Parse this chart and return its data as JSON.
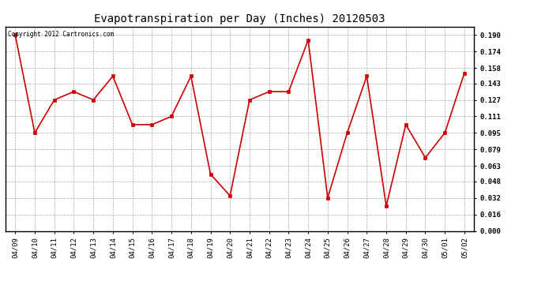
{
  "title": "Evapotranspiration per Day (Inches) 20120503",
  "copyright_text": "Copyright 2012 Cartronics.com",
  "dates": [
    "04/09",
    "04/10",
    "04/11",
    "04/12",
    "04/13",
    "04/14",
    "04/15",
    "04/16",
    "04/17",
    "04/18",
    "04/19",
    "04/20",
    "04/21",
    "04/22",
    "04/23",
    "04/24",
    "04/25",
    "04/26",
    "04/27",
    "04/28",
    "04/29",
    "04/30",
    "05/01",
    "05/02"
  ],
  "values": [
    0.19,
    0.095,
    0.127,
    0.135,
    0.127,
    0.15,
    0.103,
    0.103,
    0.111,
    0.15,
    0.055,
    0.034,
    0.127,
    0.135,
    0.135,
    0.185,
    0.032,
    0.095,
    0.15,
    0.024,
    0.103,
    0.071,
    0.095,
    0.153
  ],
  "line_color": "#cc0000",
  "marker": "s",
  "marker_size": 2.5,
  "bg_color": "#ffffff",
  "grid_color": "#aaaaaa",
  "yticks": [
    0.0,
    0.016,
    0.032,
    0.048,
    0.063,
    0.079,
    0.095,
    0.111,
    0.127,
    0.143,
    0.158,
    0.174,
    0.19
  ],
  "ylim": [
    0.0,
    0.198
  ],
  "title_fontsize": 10,
  "tick_fontsize": 6.5,
  "copyright_fontsize": 5.5
}
